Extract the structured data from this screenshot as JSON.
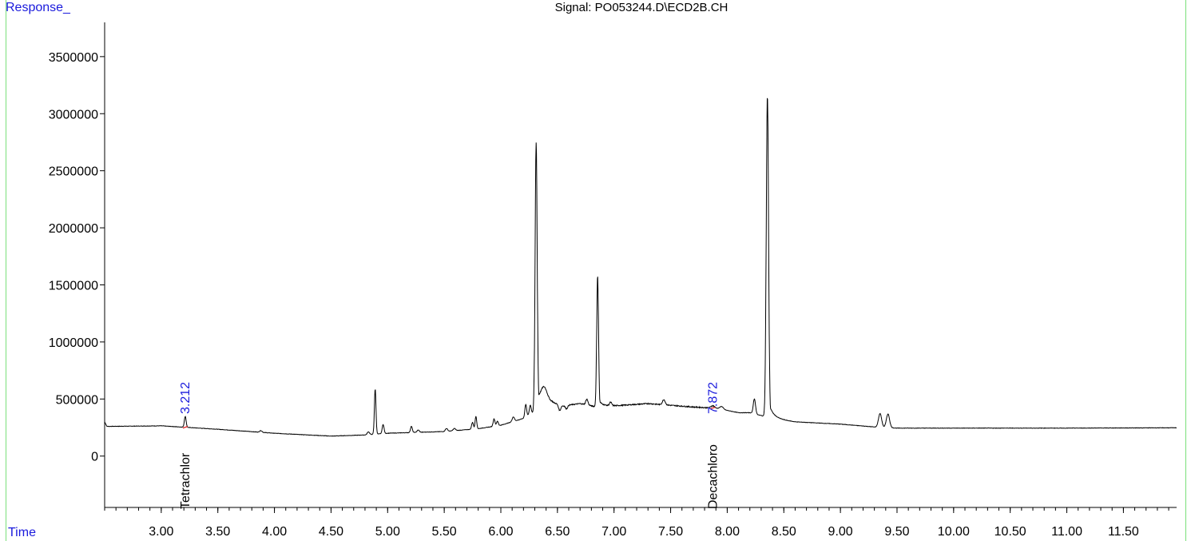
{
  "chart_data": {
    "type": "line",
    "title": "Signal: PO053244.D\\ECD2B.CH",
    "ylabel": "Response_",
    "xlabel": "Time",
    "xlim": [
      2.5,
      11.97
    ],
    "ylim": [
      -450000,
      3800000
    ],
    "x_ticks": [
      3.0,
      3.5,
      4.0,
      4.5,
      5.0,
      5.5,
      6.0,
      6.5,
      7.0,
      7.5,
      8.0,
      8.5,
      9.0,
      9.5,
      10.0,
      10.5,
      11.0,
      11.5
    ],
    "x_tick_labels": [
      "3.00",
      "3.50",
      "4.00",
      "4.50",
      "5.00",
      "5.50",
      "6.00",
      "6.50",
      "7.00",
      "7.50",
      "8.00",
      "8.50",
      "9.00",
      "9.50",
      "10.00",
      "10.50",
      "11.00",
      "11.50"
    ],
    "x_minor_step": 0.1,
    "y_ticks": [
      0,
      500000,
      1000000,
      1500000,
      2000000,
      2500000,
      3000000,
      3500000
    ],
    "y_tick_labels": [
      "0",
      "500000",
      "1000000",
      "1500000",
      "2000000",
      "2500000",
      "3000000",
      "3500000"
    ],
    "grid": false,
    "series": [
      {
        "color": "#000000",
        "baseline": [
          [
            2.5,
            300000
          ],
          [
            2.52,
            260000
          ],
          [
            3.0,
            265000
          ],
          [
            3.5,
            235000
          ],
          [
            4.0,
            200000
          ],
          [
            4.5,
            175000
          ],
          [
            4.8,
            185000
          ],
          [
            5.0,
            200000
          ],
          [
            5.5,
            215000
          ],
          [
            5.8,
            240000
          ],
          [
            6.0,
            270000
          ],
          [
            6.2,
            330000
          ],
          [
            6.3,
            390000
          ],
          [
            6.45,
            470000
          ],
          [
            6.55,
            440000
          ],
          [
            6.7,
            460000
          ],
          [
            6.85,
            430000
          ],
          [
            7.0,
            440000
          ],
          [
            7.3,
            460000
          ],
          [
            7.5,
            445000
          ],
          [
            7.7,
            430000
          ],
          [
            7.9,
            420000
          ],
          [
            8.1,
            380000
          ],
          [
            8.2,
            380000
          ],
          [
            8.4,
            330000
          ],
          [
            8.6,
            300000
          ],
          [
            9.0,
            280000
          ],
          [
            9.3,
            255000
          ],
          [
            9.5,
            245000
          ],
          [
            10.0,
            245000
          ],
          [
            11.0,
            245000
          ],
          [
            11.97,
            248000
          ]
        ],
        "peaks": [
          [
            3.212,
            95000,
            0.008
          ],
          [
            3.88,
            15000,
            0.01
          ],
          [
            4.83,
            25000,
            0.01
          ],
          [
            4.89,
            395000,
            0.007
          ],
          [
            4.96,
            80000,
            0.008
          ],
          [
            5.21,
            55000,
            0.008
          ],
          [
            5.27,
            20000,
            0.01
          ],
          [
            5.52,
            25000,
            0.01
          ],
          [
            5.59,
            20000,
            0.01
          ],
          [
            5.75,
            60000,
            0.008
          ],
          [
            5.78,
            110000,
            0.007
          ],
          [
            5.94,
            65000,
            0.008
          ],
          [
            5.97,
            40000,
            0.008
          ],
          [
            6.11,
            40000,
            0.01
          ],
          [
            6.22,
            110000,
            0.008
          ],
          [
            6.26,
            80000,
            0.008
          ],
          [
            6.312,
            2340000,
            0.009
          ],
          [
            6.38,
            150000,
            0.03
          ],
          [
            6.52,
            -50000,
            0.01
          ],
          [
            6.58,
            -30000,
            0.01
          ],
          [
            6.76,
            50000,
            0.01
          ],
          [
            6.855,
            1150000,
            0.008
          ],
          [
            6.97,
            30000,
            0.01
          ],
          [
            7.44,
            45000,
            0.012
          ],
          [
            7.872,
            20000,
            0.015
          ],
          [
            7.95,
            25000,
            0.015
          ],
          [
            8.24,
            130000,
            0.01
          ],
          [
            8.355,
            2820000,
            0.01
          ],
          [
            9.35,
            120000,
            0.014
          ],
          [
            9.42,
            120000,
            0.014
          ]
        ]
      }
    ],
    "peak_labels": [
      {
        "time": 3.212,
        "label": "3.212",
        "compound": "Tetrachlor"
      },
      {
        "time": 7.872,
        "label": "7.872",
        "compound": "Decachloro"
      }
    ]
  }
}
